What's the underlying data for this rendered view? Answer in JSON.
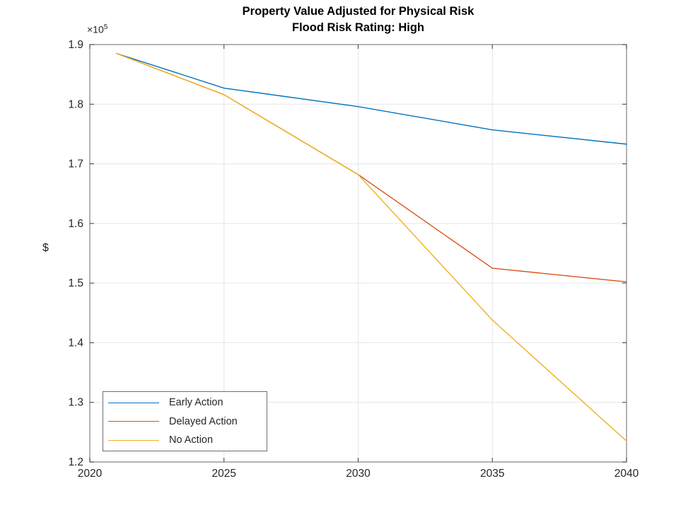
{
  "chart_data": {
    "type": "line",
    "title": "Property Value Adjusted for Physical Risk",
    "subtitle": "Flood Risk Rating: High",
    "xlabel": "",
    "ylabel": "$",
    "y_offset_text": {
      "base": "×10",
      "exp": "5"
    },
    "x": [
      2021,
      2025,
      2030,
      2035,
      2040
    ],
    "xlim": [
      2020,
      2040
    ],
    "ylim": [
      120000,
      190000
    ],
    "x_ticks": [
      2020,
      2025,
      2030,
      2035,
      2040
    ],
    "x_tick_labels": [
      "2020",
      "2025",
      "2030",
      "2035",
      "2040"
    ],
    "y_ticks": [
      120000,
      130000,
      140000,
      150000,
      160000,
      170000,
      180000,
      190000
    ],
    "y_tick_labels": [
      "1.2",
      "1.3",
      "1.4",
      "1.5",
      "1.6",
      "1.7",
      "1.8",
      "1.9"
    ],
    "grid": true,
    "legend_position": "southwest",
    "series": [
      {
        "name": "Early Action",
        "color": "#0072BD",
        "values": [
          188500,
          182700,
          179600,
          175700,
          173300
        ]
      },
      {
        "name": "Delayed Action",
        "color": "#D95319",
        "values": [
          188500,
          181600,
          168200,
          152500,
          150200
        ]
      },
      {
        "name": "No Action",
        "color": "#EDB120",
        "values": [
          188500,
          181600,
          168200,
          143800,
          123500
        ]
      }
    ],
    "colors": {
      "grid": "#e6e6e6",
      "axis_box": "#8c8c8c",
      "tick_mark": "#3c3c3c",
      "tick_label": "#262626",
      "title": "#000000"
    }
  }
}
